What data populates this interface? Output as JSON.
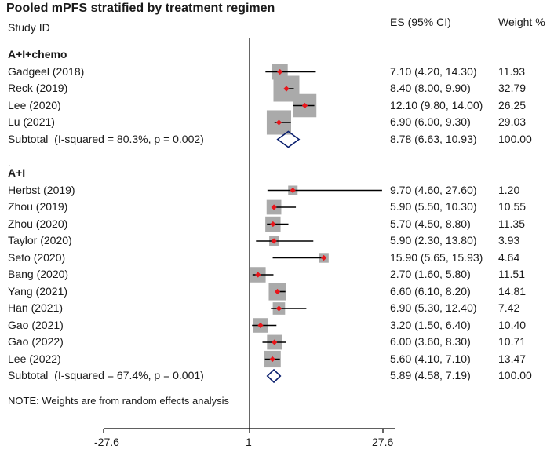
{
  "header": {
    "title": "Pooled mPFS stratified by treatment regimen",
    "study_col": "Study ID",
    "es_col": "ES (95% CI)",
    "weight_col": "Weight %"
  },
  "footer": {
    "dot": ".",
    "note": "NOTE: Weights are from random effects analysis"
  },
  "axis": {
    "tick_labels": [
      "-27.6",
      "1",
      "27.6"
    ]
  },
  "chart_data": {
    "type": "forest",
    "title": "Pooled mPFS stratified by treatment regimen",
    "null_line": 1,
    "ticks": [
      -27.6,
      1,
      27.6
    ],
    "groups": [
      {
        "name": "A+I+chemo",
        "studies": [
          {
            "name": "Gadgeel (2018)",
            "es": 7.1,
            "lo": 4.2,
            "hi": 14.3,
            "ci_text": "7.10 (4.20, 14.30)",
            "weight": "11.93"
          },
          {
            "name": "Reck (2019)",
            "es": 8.4,
            "lo": 8.0,
            "hi": 9.9,
            "ci_text": "8.40 (8.00, 9.90)",
            "weight": "32.79"
          },
          {
            "name": "Lee (2020)",
            "es": 12.1,
            "lo": 9.8,
            "hi": 14.0,
            "ci_text": "12.10 (9.80, 14.00)",
            "weight": "26.25"
          },
          {
            "name": "Lu (2021)",
            "es": 6.9,
            "lo": 6.0,
            "hi": 9.3,
            "ci_text": "6.90 (6.00, 9.30)",
            "weight": "29.03"
          }
        ],
        "subtotal": {
          "label": "Subtotal  (I-squared = 80.3%, p = 0.002)",
          "es": 8.78,
          "lo": 6.63,
          "hi": 10.93,
          "ci_text": "8.78 (6.63, 10.93)",
          "weight": "100.00"
        }
      },
      {
        "name": "A+I",
        "studies": [
          {
            "name": "Herbst (2019)",
            "es": 9.7,
            "lo": 4.6,
            "hi": 27.6,
            "ci_text": "9.70 (4.60, 27.60)",
            "weight": "1.20"
          },
          {
            "name": "Zhou (2019)",
            "es": 5.9,
            "lo": 5.5,
            "hi": 10.3,
            "ci_text": "5.90 (5.50, 10.30)",
            "weight": "10.55"
          },
          {
            "name": "Zhou (2020)",
            "es": 5.7,
            "lo": 4.5,
            "hi": 8.8,
            "ci_text": "5.70 (4.50, 8.80)",
            "weight": "11.35"
          },
          {
            "name": "Taylor (2020)",
            "es": 5.9,
            "lo": 2.3,
            "hi": 13.8,
            "ci_text": "5.90 (2.30, 13.80)",
            "weight": "3.93"
          },
          {
            "name": "Seto (2020)",
            "es": 15.9,
            "lo": 5.65,
            "hi": 15.93,
            "ci_text": "15.90 (5.65, 15.93)",
            "weight": "4.64"
          },
          {
            "name": "Bang (2020)",
            "es": 2.7,
            "lo": 1.6,
            "hi": 5.8,
            "ci_text": "2.70 (1.60, 5.80)",
            "weight": "11.51"
          },
          {
            "name": "Yang (2021)",
            "es": 6.6,
            "lo": 6.1,
            "hi": 8.2,
            "ci_text": "6.60 (6.10, 8.20)",
            "weight": "14.81"
          },
          {
            "name": "Han (2021)",
            "es": 6.9,
            "lo": 5.3,
            "hi": 12.4,
            "ci_text": "6.90 (5.30, 12.40)",
            "weight": "7.42"
          },
          {
            "name": "Gao (2021)",
            "es": 3.2,
            "lo": 1.5,
            "hi": 6.4,
            "ci_text": "3.20 (1.50, 6.40)",
            "weight": "10.40"
          },
          {
            "name": "Gao (2022)",
            "es": 6.0,
            "lo": 3.6,
            "hi": 8.3,
            "ci_text": "6.00 (3.60, 8.30)",
            "weight": "10.71"
          },
          {
            "name": "Lee (2022)",
            "es": 5.6,
            "lo": 4.1,
            "hi": 7.1,
            "ci_text": "5.60 (4.10, 7.10)",
            "weight": "13.47"
          }
        ],
        "subtotal": {
          "label": "Subtotal  (I-squared = 67.4%, p = 0.001)",
          "es": 5.89,
          "lo": 4.58,
          "hi": 7.19,
          "ci_text": "5.89 (4.58, 7.19)",
          "weight": "100.00"
        }
      }
    ],
    "colors": {
      "box": "#aaaaaa",
      "point": "#e8161b",
      "line": "#000000",
      "diamond": "#0a1f6e"
    }
  }
}
